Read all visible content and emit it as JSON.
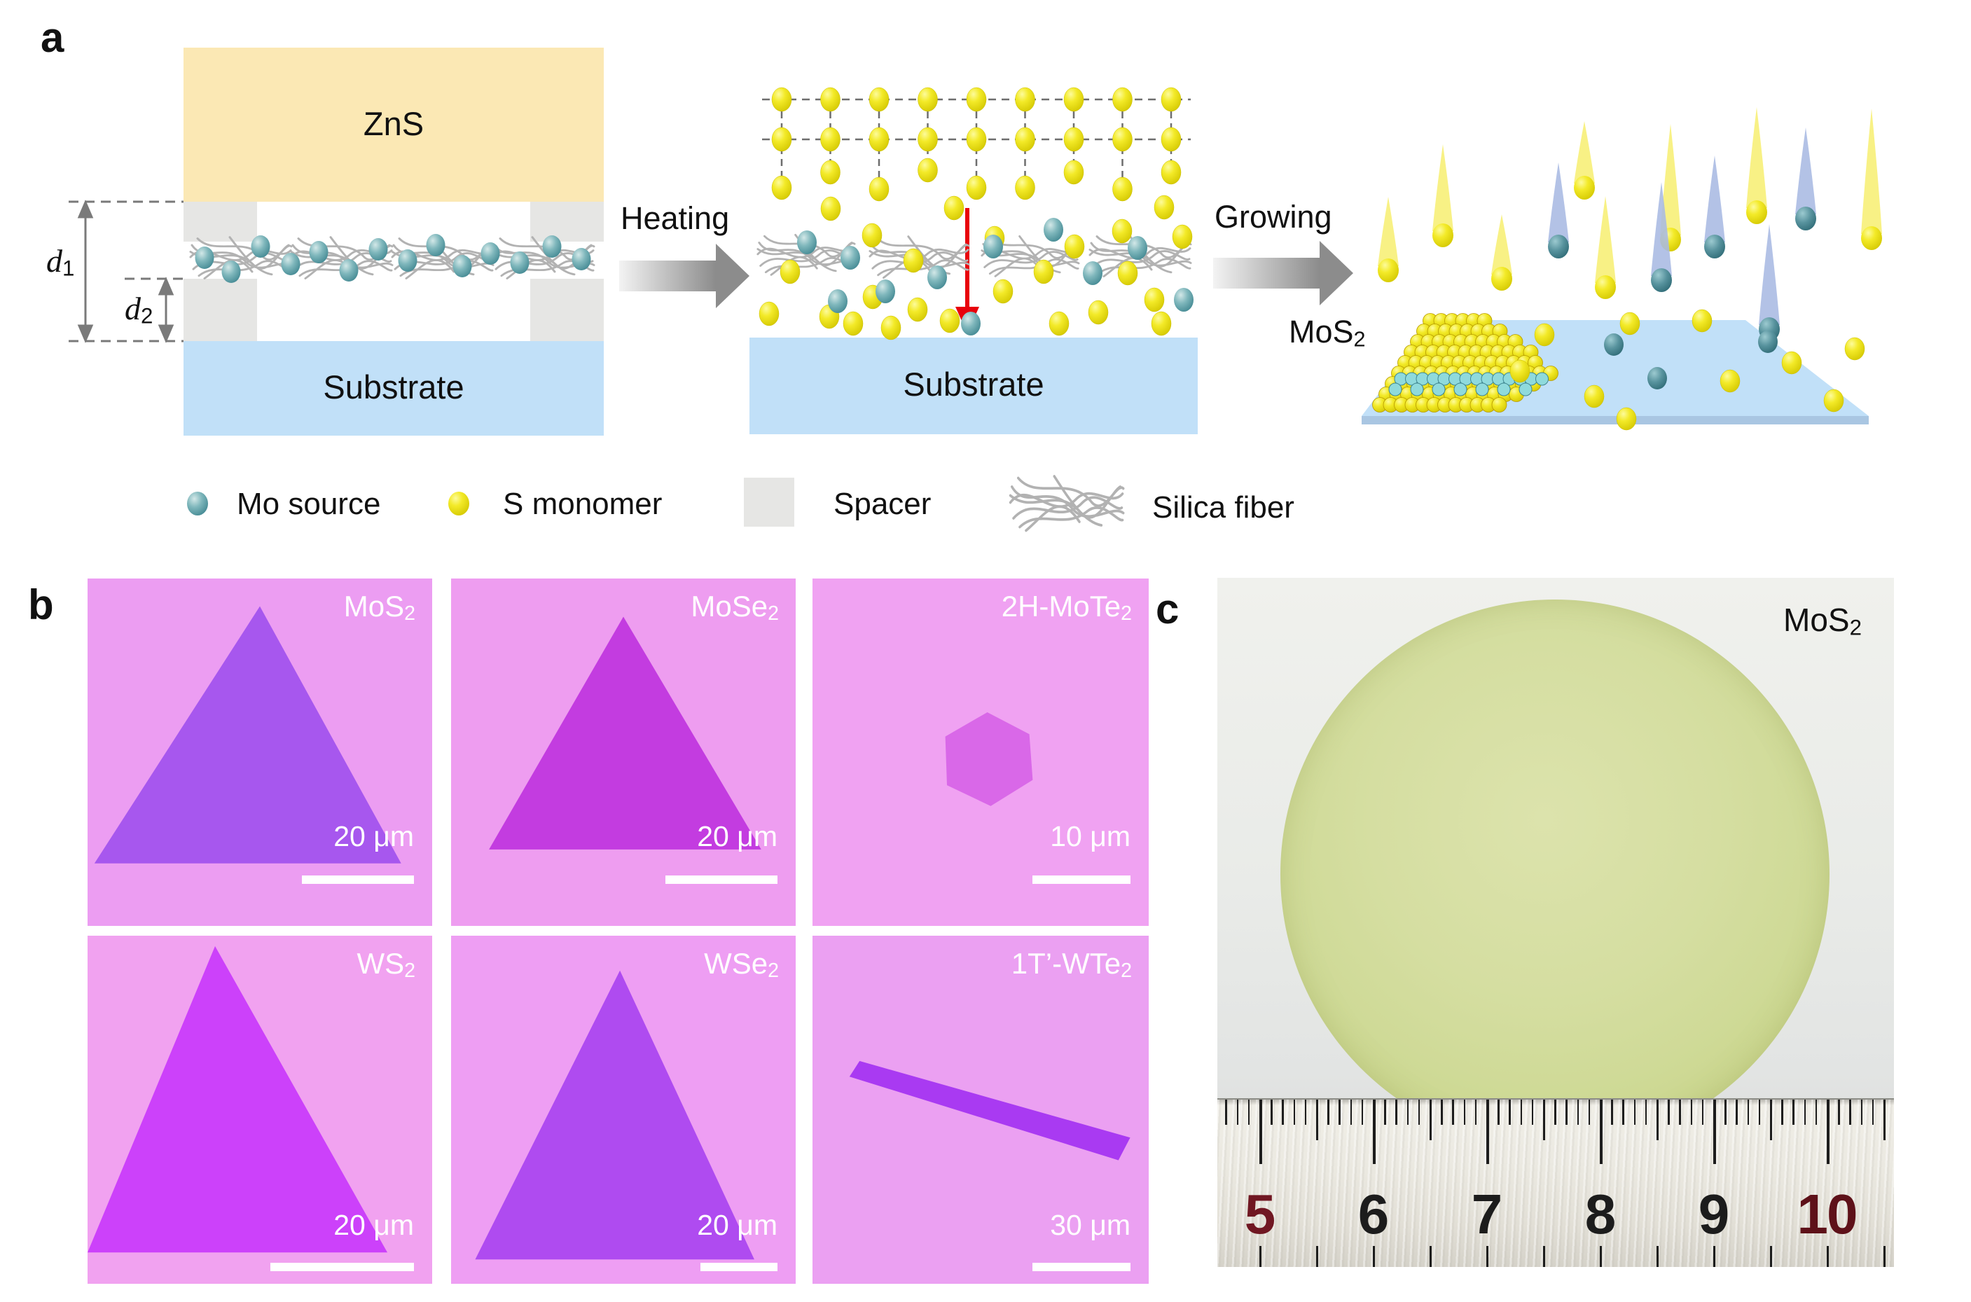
{
  "figure": {
    "panel_a_label": "a",
    "panel_b_label": "b",
    "panel_c_label": "c"
  },
  "panel_a": {
    "zns_label": "ZnS",
    "substrate_left_label": "Substrate",
    "substrate_middle_label": "Substrate",
    "gap_d1": {
      "symbol": "d",
      "subscript": "1"
    },
    "gap_d2": {
      "symbol": "d",
      "subscript": "2"
    },
    "heating_label": "Heating",
    "growing_label": "Growing",
    "product_label": {
      "main": "MoS",
      "subscript": "2"
    },
    "legend": [
      {
        "icon": "mo-source-dot",
        "label": "Mo source"
      },
      {
        "icon": "s-monomer-dot",
        "label": "S monomer"
      },
      {
        "icon": "spacer-swatch",
        "label": "Spacer"
      },
      {
        "icon": "silica-fiber",
        "label": "Silica fiber"
      }
    ],
    "colors": {
      "zns": "#FBE8B4",
      "substrate": "#C1E0F8",
      "substrate_edge": "#A9C6E2",
      "spacer": "#E6E6E4",
      "mo_source": "#4E8F96",
      "s_monomer": "#F0E71F",
      "silica_fiber": "#B2B2B2",
      "red_arrow": "#E8000B"
    }
  },
  "panel_b": {
    "tiles": [
      {
        "material": "MoS",
        "subscript": "2",
        "scale_label": "20 μm",
        "shape": "triangle",
        "bg_color": "#EC9DF2",
        "flake_color": "#A757EE"
      },
      {
        "material": "MoSe",
        "subscript": "2",
        "scale_label": "20 μm",
        "shape": "triangle",
        "bg_color": "#EE9DF0",
        "flake_color": "#C33CE0"
      },
      {
        "material": "2H-MoTe",
        "subscript": "2",
        "scale_label": "10 μm",
        "shape": "hexagon",
        "bg_color": "#F0A2F2",
        "flake_color": "#D968E8"
      },
      {
        "material": "WS",
        "subscript": "2",
        "scale_label": "20 μm",
        "shape": "triangle",
        "bg_color": "#F1A2F0",
        "flake_color": "#CC41FA"
      },
      {
        "material": "WSe",
        "subscript": "2",
        "scale_label": "20 μm",
        "shape": "triangle",
        "bg_color": "#EE9EF3",
        "flake_color": "#AF4BF0"
      },
      {
        "material": "1T’-WTe",
        "subscript": "2",
        "scale_label": "30 μm",
        "shape": "ribbon",
        "bg_color": "#EBA0F2",
        "flake_color": "#A93AF2"
      }
    ]
  },
  "panel_c": {
    "material_label": {
      "main": "MoS",
      "subscript": "2"
    },
    "wafer_color": "#CFDA9B",
    "ruler_numbers": [
      {
        "value": "5",
        "color": "#701722"
      },
      {
        "value": "6",
        "color": "#1C1C1C"
      },
      {
        "value": "7",
        "color": "#1C1C1C"
      },
      {
        "value": "8",
        "color": "#1C1C1C"
      },
      {
        "value": "9",
        "color": "#1C1C1C"
      },
      {
        "value": "10",
        "color": "#5E1119"
      }
    ]
  }
}
